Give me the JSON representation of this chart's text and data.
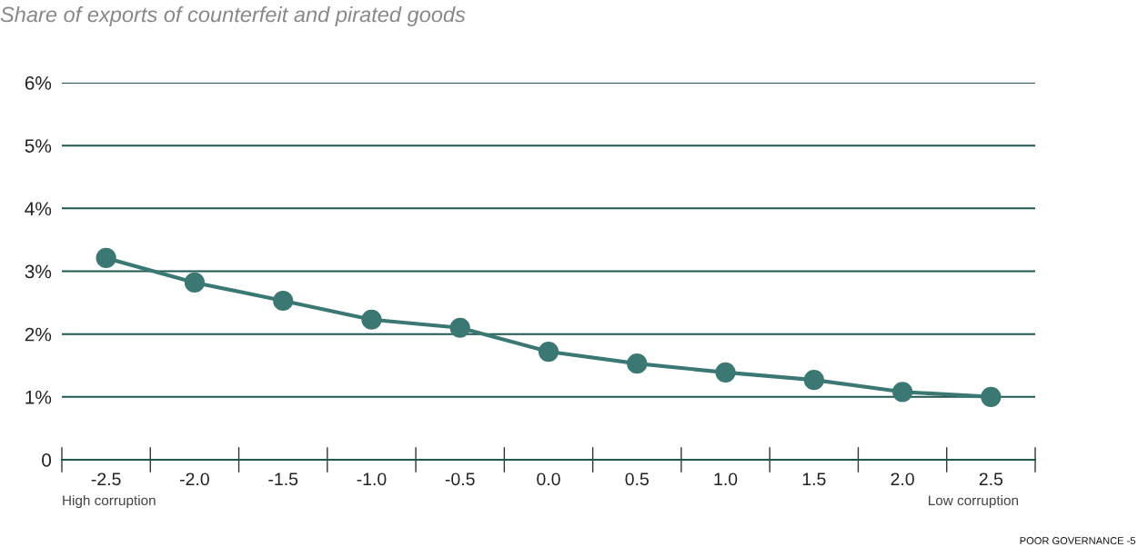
{
  "chart_data": {
    "type": "line",
    "title": "Share of exports of counterfeit and pirated goods",
    "categories": [
      "-2.5",
      "-2.0",
      "-1.5",
      "-1.0",
      "-0.5",
      "0.0",
      "0.5",
      "1.0",
      "1.5",
      "2.0",
      "2.5"
    ],
    "series": [
      {
        "color": "#3b7873",
        "values": [
          3.21,
          2.82,
          2.53,
          2.23,
          2.1,
          1.72,
          1.53,
          1.39,
          1.27,
          1.08,
          1.0
        ]
      }
    ],
    "ylim": [
      0,
      6
    ],
    "yticks": [
      {
        "value": 0,
        "label": "0"
      },
      {
        "value": 1,
        "label": "1%"
      },
      {
        "value": 2,
        "label": "2%"
      },
      {
        "value": 3,
        "label": "3%"
      },
      {
        "value": 4,
        "label": "4%"
      },
      {
        "value": 5,
        "label": "5%"
      },
      {
        "value": 6,
        "label": "6%"
      }
    ],
    "grid": "y",
    "marker": "circle",
    "line_style": "solid",
    "annotations": [
      "High corruption",
      "Low corruption",
      "POOR GOVERNANCE -5"
    ]
  }
}
